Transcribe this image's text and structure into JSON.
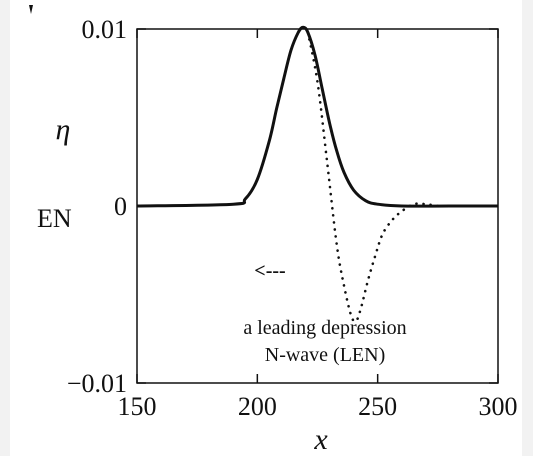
{
  "chart_data": {
    "type": "line",
    "title": "",
    "xlabel": "x",
    "ylabel": "η",
    "xlim": [
      150,
      300
    ],
    "ylim": [
      -0.01,
      0.01
    ],
    "x_ticks": [
      "150",
      "200",
      "250",
      "300"
    ],
    "y_ticks": [
      "0.01",
      "0",
      "−0.01"
    ],
    "grid": false,
    "legend": "none",
    "cut_off_text": "EN",
    "series": [
      {
        "style": "solid",
        "x": [
          150,
          190,
          195,
          200,
          205,
          208,
          211,
          214,
          217,
          219,
          221,
          224,
          227,
          230,
          233,
          236,
          240,
          245,
          250,
          260,
          280,
          300
        ],
        "y": [
          0.0,
          0.0001,
          0.0004,
          0.0015,
          0.0037,
          0.0055,
          0.0072,
          0.0088,
          0.0098,
          0.0101,
          0.0098,
          0.0085,
          0.0066,
          0.0047,
          0.0031,
          0.0019,
          0.0009,
          0.0003,
          0.0001,
          0.0,
          0.0,
          0.0
        ]
      },
      {
        "style": "dotted",
        "x": [
          221,
          225,
          229,
          233,
          236,
          239,
          241,
          243,
          246,
          249,
          252,
          256,
          260,
          265,
          270,
          275
        ],
        "y": [
          0.0098,
          0.007,
          0.0025,
          -0.0022,
          -0.0045,
          -0.0062,
          -0.0065,
          -0.0058,
          -0.0042,
          -0.0028,
          -0.0016,
          -0.0008,
          -0.0003,
          0.0001,
          0.0001,
          0.0
        ]
      }
    ],
    "annotations": {
      "arrow": "<---",
      "line1": "a leading depression",
      "line2": "N-wave (LEN)"
    }
  }
}
